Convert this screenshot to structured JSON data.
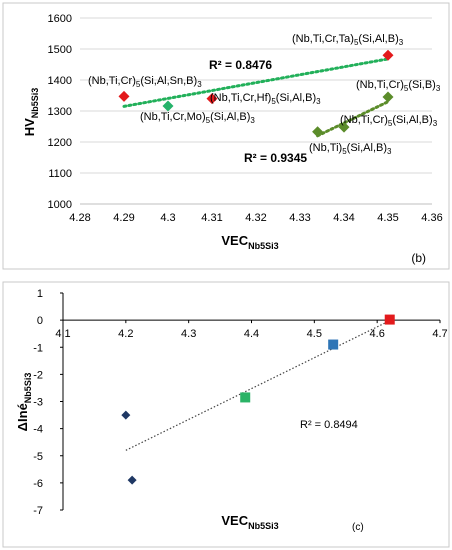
{
  "chart_data": [
    {
      "panel_label": "(b)",
      "type": "scatter",
      "xlabel": "VEC",
      "xlabel_sub": "Nb5Si3",
      "ylabel": "HV",
      "ylabel_sub": "Nb5Si3",
      "xlim": [
        4.28,
        4.36
      ],
      "ylim": [
        1000,
        1600
      ],
      "xticks": [
        "4.28",
        "4.29",
        "4.3",
        "4.31",
        "4.32",
        "4.33",
        "4.34",
        "4.35",
        "4.36"
      ],
      "yticks": [
        "1000",
        "1100",
        "1200",
        "1300",
        "1400",
        "1500",
        "1600"
      ],
      "grid": "horizontal",
      "series": [
        {
          "color": "#e31a1c",
          "marker": "diamond",
          "points": [
            {
              "x": 4.29,
              "y": 1347,
              "label": "(Nb,Ti,Cr)5(Si,Al,Sn,B)3"
            },
            {
              "x": 4.31,
              "y": 1340,
              "label": "(Nb,Ti,Cr,Hf)5(Si,Al,B)3"
            },
            {
              "x": 4.35,
              "y": 1480,
              "label": "(Nb,Ti,Cr,Ta)5(Si,Al,B)3"
            }
          ]
        },
        {
          "color": "#26b36b",
          "marker": "diamond",
          "points": [
            {
              "x": 4.3,
              "y": 1316,
              "label": "(Nb,Ti,Cr,Mo)5(Si,Al,B)3"
            }
          ]
        },
        {
          "color": "#5b8c2a",
          "marker": "diamond",
          "points": [
            {
              "x": 4.334,
              "y": 1233,
              "label": "(Nb,Ti)5(Si,Al,B)3"
            },
            {
              "x": 4.34,
              "y": 1248,
              "label": "(Nb,Ti,Cr)5(Si,Al,B)3"
            },
            {
              "x": 4.35,
              "y": 1345,
              "label": "(Nb,Ti,Cr)5(Si,B)3"
            }
          ]
        }
      ],
      "trendlines": [
        {
          "color": "#22b05a",
          "x": [
            4.29,
            4.35
          ],
          "y": [
            1315,
            1468
          ],
          "r2": "R² = 0.8476"
        },
        {
          "color": "#5b8c2a",
          "x": [
            4.334,
            4.35
          ],
          "y": [
            1220,
            1330
          ],
          "r2": "R² = 0.9345"
        }
      ]
    },
    {
      "panel_label": "(c)",
      "type": "scatter",
      "xlabel": "VEC",
      "xlabel_sub": "Nb5Si3",
      "ylabel": "ΔIné",
      "ylabel_sub": "Nb5Si3",
      "xlim": [
        4.1,
        4.7
      ],
      "ylim": [
        -7,
        1
      ],
      "xticks": [
        "4.1",
        "4.2",
        "4.3",
        "4.4",
        "4.5",
        "4.6",
        "4.7"
      ],
      "yticks": [
        "1",
        "0",
        "-1",
        "-2",
        "-3",
        "-4",
        "-5",
        "-6",
        "-7"
      ],
      "grid": "none",
      "points": [
        {
          "x": 4.2,
          "y": -3.5,
          "color": "#1f3864",
          "marker": "diamond"
        },
        {
          "x": 4.21,
          "y": -5.9,
          "color": "#1f3864",
          "marker": "diamond"
        },
        {
          "x": 4.39,
          "y": -2.85,
          "color": "#2ab366",
          "marker": "square"
        },
        {
          "x": 4.53,
          "y": -0.9,
          "color": "#2e75b6",
          "marker": "square"
        },
        {
          "x": 4.62,
          "y": 0.02,
          "color": "#e31a1c",
          "marker": "square"
        }
      ],
      "trendline": {
        "color": "#444444",
        "x": [
          4.2,
          4.62
        ],
        "y": [
          -4.8,
          -0.02
        ],
        "r2": "R² = 0.8494"
      }
    }
  ]
}
